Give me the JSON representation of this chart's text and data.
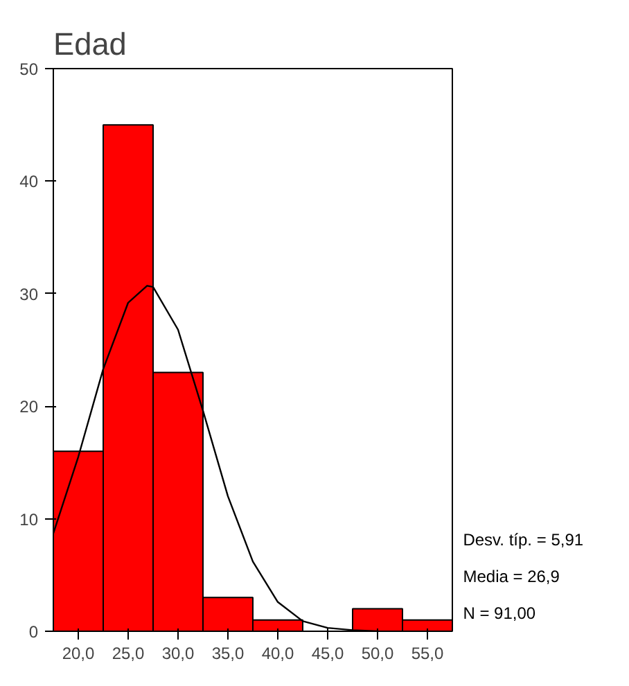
{
  "chart_data": {
    "type": "histogram",
    "title": "Edad",
    "series": [
      {
        "bins": [
          17.5,
          22.5,
          27.5,
          32.5,
          37.5,
          42.5,
          47.5,
          52.5,
          57.5
        ],
        "values": [
          16,
          45,
          23,
          3,
          1,
          0,
          2,
          1
        ],
        "color": "#ff0000"
      },
      {
        "type": "line",
        "x": [
          17.5,
          20,
          22.5,
          25,
          26.9,
          27.5,
          30,
          32.5,
          35,
          37.5,
          40,
          42.5,
          45,
          47.5,
          50
        ],
        "values": [
          8.7,
          15.5,
          23.3,
          29.2,
          30.7,
          30.6,
          26.8,
          19.6,
          12.0,
          6.2,
          2.6,
          0.9,
          0.3,
          0.1,
          0.0
        ],
        "color": "#000000"
      }
    ],
    "xlim": [
      17.5,
      57.5
    ],
    "ylim": [
      0,
      50
    ],
    "xticks": [
      {
        "value": 20,
        "label": "20,0"
      },
      {
        "value": 25,
        "label": "25,0"
      },
      {
        "value": 30,
        "label": "30,0"
      },
      {
        "value": 35,
        "label": "35,0"
      },
      {
        "value": 40,
        "label": "40,0"
      },
      {
        "value": 45,
        "label": "45,0"
      },
      {
        "value": 50,
        "label": "50,0"
      },
      {
        "value": 55,
        "label": "55,0"
      }
    ],
    "yticks": [
      0,
      10,
      20,
      30,
      40,
      50
    ],
    "annotations": [
      "Desv. típ. = 5,91",
      "Media = 26,9",
      "N = 91,00"
    ],
    "grid": false
  }
}
